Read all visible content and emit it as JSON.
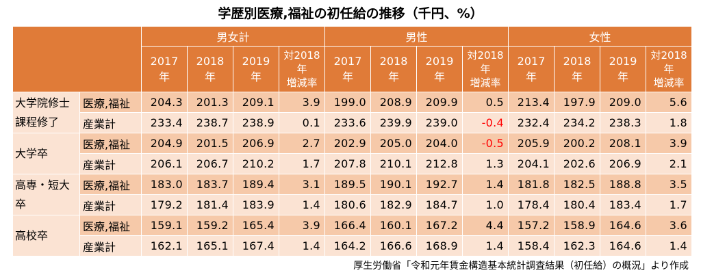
{
  "title": "学歴別医療,福祉の初任給の推移（千円、%）",
  "groups": [
    "男女計",
    "男性",
    "女性"
  ],
  "columns": [
    [
      "2017",
      "年"
    ],
    [
      "2018",
      "年"
    ],
    [
      "2019",
      "年"
    ],
    [
      "対2018",
      "年",
      "増減率"
    ]
  ],
  "rows": [
    {
      "category": [
        "大学院修士",
        "課程修了"
      ],
      "items": [
        {
          "label": "医療,福祉",
          "values": [
            "204.3",
            "201.3",
            "209.1",
            "3.9",
            "199.0",
            "208.9",
            "209.9",
            "0.5",
            "213.4",
            "197.9",
            "209.0",
            "5.6"
          ]
        },
        {
          "label": "産業計",
          "values": [
            "233.4",
            "238.7",
            "238.9",
            "0.1",
            "233.6",
            "239.9",
            "239.0",
            "-0.4",
            "232.4",
            "234.2",
            "238.3",
            "1.8"
          ]
        }
      ]
    },
    {
      "category": [
        "大学卒"
      ],
      "items": [
        {
          "label": "医療,福祉",
          "values": [
            "204.9",
            "201.5",
            "206.9",
            "2.7",
            "202.9",
            "205.0",
            "204.0",
            "-0.5",
            "205.9",
            "200.2",
            "208.1",
            "3.9"
          ]
        },
        {
          "label": "産業計",
          "values": [
            "206.1",
            "206.7",
            "210.2",
            "1.7",
            "207.8",
            "210.1",
            "212.8",
            "1.3",
            "204.1",
            "202.6",
            "206.9",
            "2.1"
          ]
        }
      ]
    },
    {
      "category": [
        "高専・短大",
        "卒"
      ],
      "items": [
        {
          "label": "医療,福祉",
          "values": [
            "183.0",
            "183.7",
            "189.4",
            "3.1",
            "189.5",
            "190.1",
            "192.7",
            "1.4",
            "181.8",
            "182.5",
            "188.8",
            "3.5"
          ]
        },
        {
          "label": "産業計",
          "values": [
            "179.2",
            "181.4",
            "183.9",
            "1.4",
            "180.6",
            "182.9",
            "184.7",
            "1.0",
            "178.4",
            "180.4",
            "183.4",
            "1.7"
          ]
        }
      ]
    },
    {
      "category": [
        "高校卒"
      ],
      "items": [
        {
          "label": "医療,福祉",
          "values": [
            "159.1",
            "159.2",
            "165.4",
            "3.9",
            "166.4",
            "160.1",
            "167.2",
            "4.4",
            "157.2",
            "158.9",
            "164.6",
            "3.6"
          ]
        },
        {
          "label": "産業計",
          "values": [
            "162.1",
            "165.1",
            "167.4",
            "1.4",
            "164.2",
            "166.6",
            "168.9",
            "1.4",
            "158.4",
            "162.3",
            "164.6",
            "1.4"
          ]
        }
      ]
    }
  ],
  "source": "厚生労働省「令和元年賃金構造基本統計調査結果（初任給）の概況」より作成",
  "colors": {
    "header": "#e07b38",
    "row_dark": "#f6c9a9",
    "row_light": "#fbe3d3",
    "negative": "#ff0000"
  }
}
